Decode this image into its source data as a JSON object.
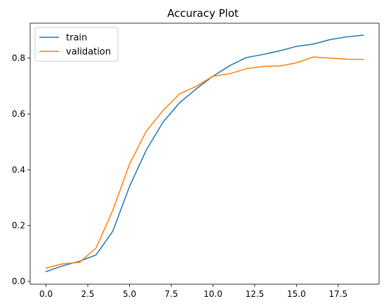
{
  "chart_data": {
    "type": "line",
    "title": "Accuracy Plot",
    "xlabel": "",
    "ylabel": "",
    "xlim": [
      -0.95,
      19.95
    ],
    "ylim": [
      -0.01,
      0.925
    ],
    "xticks": [
      0.0,
      2.5,
      5.0,
      7.5,
      10.0,
      12.5,
      15.0,
      17.5
    ],
    "xtick_labels": [
      "0.0",
      "2.5",
      "5.0",
      "7.5",
      "10.0",
      "12.5",
      "15.0",
      "17.5"
    ],
    "yticks": [
      0.0,
      0.2,
      0.4,
      0.6,
      0.8
    ],
    "ytick_labels": [
      "0.0",
      "0.2",
      "0.4",
      "0.6",
      "0.8"
    ],
    "grid": false,
    "legend_position": "top-left",
    "x": [
      0,
      1,
      2,
      3,
      4,
      5,
      6,
      7,
      8,
      9,
      10,
      11,
      12,
      13,
      14,
      15,
      16,
      17,
      18,
      19
    ],
    "series": [
      {
        "name": "train",
        "color": "#1f77b4",
        "values": [
          0.035,
          0.056,
          0.072,
          0.095,
          0.18,
          0.34,
          0.47,
          0.57,
          0.64,
          0.69,
          0.735,
          0.773,
          0.802,
          0.813,
          0.826,
          0.842,
          0.85,
          0.866,
          0.876,
          0.882
        ]
      },
      {
        "name": "validation",
        "color": "#ff7f0e",
        "values": [
          0.048,
          0.063,
          0.068,
          0.12,
          0.255,
          0.42,
          0.538,
          0.612,
          0.672,
          0.699,
          0.735,
          0.744,
          0.762,
          0.77,
          0.772,
          0.783,
          0.804,
          0.8,
          0.796,
          0.795
        ]
      }
    ]
  }
}
